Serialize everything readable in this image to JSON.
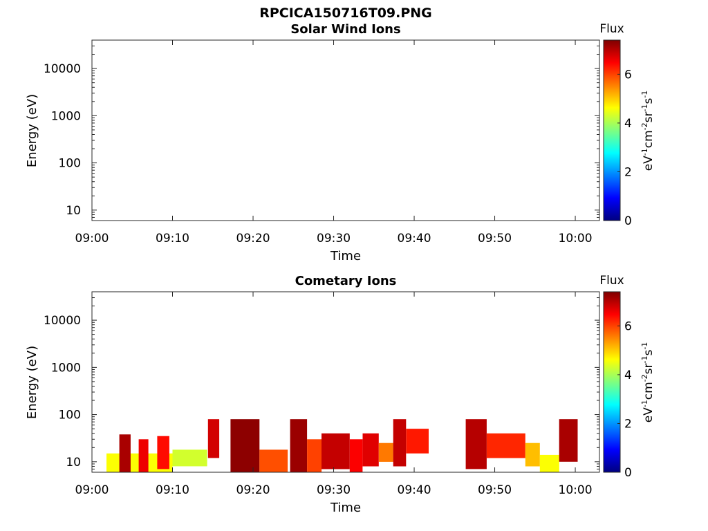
{
  "figure_title": "RPCICA150716T09.PNG",
  "chart_data": [
    {
      "type": "heatmap",
      "title": "Solar Wind Ions",
      "xlabel": "Time",
      "ylabel": "Energy (eV)",
      "x_range": [
        "09:00",
        "10:03"
      ],
      "x_ticks": [
        "09:00",
        "09:10",
        "09:20",
        "09:30",
        "09:40",
        "09:50",
        "10:00"
      ],
      "y_scale": "log",
      "y_range": [
        6,
        40000
      ],
      "y_ticks": [
        "10",
        "100",
        "1000",
        "10000"
      ],
      "grid": false,
      "colorbar": {
        "label_top": "Flux",
        "unit_label": "eV-1cm-2sr-1s-1",
        "range": [
          0,
          7.4
        ],
        "ticks": [
          "0",
          "2",
          "4",
          "6"
        ],
        "colormap": "jet"
      },
      "patches": []
    },
    {
      "type": "heatmap",
      "title": "Cometary Ions",
      "xlabel": "Time",
      "ylabel": "Energy (eV)",
      "x_range": [
        "09:00",
        "10:03"
      ],
      "x_ticks": [
        "09:00",
        "09:10",
        "09:20",
        "09:30",
        "09:40",
        "09:50",
        "10:00"
      ],
      "y_scale": "log",
      "y_range": [
        6,
        40000
      ],
      "y_ticks": [
        "10",
        "100",
        "1000",
        "10000"
      ],
      "grid": false,
      "colorbar": {
        "label_top": "Flux",
        "unit_label": "eV-1cm-2sr-1s-1",
        "range": [
          0,
          7.4
        ],
        "ticks": [
          "0",
          "2",
          "4",
          "6"
        ],
        "colormap": "jet"
      },
      "patches": [
        {
          "t0": 1.8,
          "t1": 10.0,
          "e0": 6,
          "e1": 15,
          "flux": 4.6
        },
        {
          "t0": 10.0,
          "t1": 14.3,
          "e0": 8,
          "e1": 18,
          "flux": 4.3
        },
        {
          "t0": 3.4,
          "t1": 4.8,
          "e0": 6,
          "e1": 38,
          "flux": 7.1
        },
        {
          "t0": 5.8,
          "t1": 7.0,
          "e0": 6,
          "e1": 30,
          "flux": 6.6
        },
        {
          "t0": 8.1,
          "t1": 9.6,
          "e0": 7,
          "e1": 35,
          "flux": 6.4
        },
        {
          "t0": 14.4,
          "t1": 15.8,
          "e0": 12,
          "e1": 80,
          "flux": 6.8
        },
        {
          "t0": 17.2,
          "t1": 20.8,
          "e0": 6,
          "e1": 80,
          "flux": 7.3
        },
        {
          "t0": 20.8,
          "t1": 24.3,
          "e0": 6,
          "e1": 18,
          "flux": 5.9
        },
        {
          "t0": 24.6,
          "t1": 26.7,
          "e0": 6,
          "e1": 80,
          "flux": 7.2
        },
        {
          "t0": 26.7,
          "t1": 28.5,
          "e0": 6,
          "e1": 30,
          "flux": 6.0
        },
        {
          "t0": 28.5,
          "t1": 32.0,
          "e0": 7,
          "e1": 40,
          "flux": 6.9
        },
        {
          "t0": 32.0,
          "t1": 33.6,
          "e0": 6,
          "e1": 30,
          "flux": 6.5
        },
        {
          "t0": 33.6,
          "t1": 35.6,
          "e0": 8,
          "e1": 40,
          "flux": 6.7
        },
        {
          "t0": 35.6,
          "t1": 37.4,
          "e0": 10,
          "e1": 25,
          "flux": 5.6
        },
        {
          "t0": 37.4,
          "t1": 39.0,
          "e0": 8,
          "e1": 80,
          "flux": 6.9
        },
        {
          "t0": 39.0,
          "t1": 41.8,
          "e0": 15,
          "e1": 50,
          "flux": 6.3
        },
        {
          "t0": 46.4,
          "t1": 49.0,
          "e0": 7,
          "e1": 80,
          "flux": 7.0
        },
        {
          "t0": 49.0,
          "t1": 53.8,
          "e0": 12,
          "e1": 40,
          "flux": 6.2
        },
        {
          "t0": 53.8,
          "t1": 55.6,
          "e0": 8,
          "e1": 25,
          "flux": 5.1
        },
        {
          "t0": 55.6,
          "t1": 58.0,
          "e0": 6,
          "e1": 14,
          "flux": 4.6
        },
        {
          "t0": 58.0,
          "t1": 60.3,
          "e0": 10,
          "e1": 80,
          "flux": 7.1
        }
      ]
    }
  ]
}
